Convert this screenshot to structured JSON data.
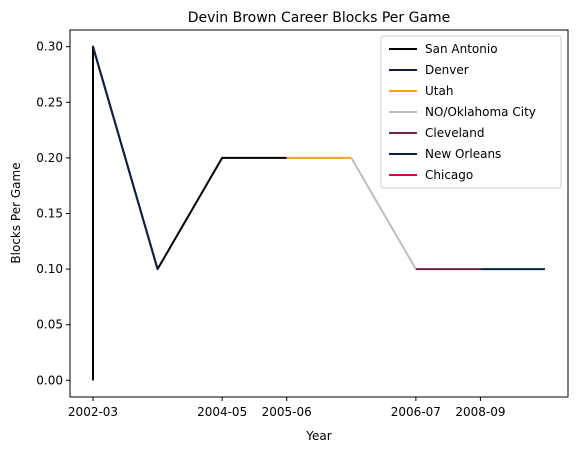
{
  "chart_data": {
    "type": "line",
    "title": "Devin Brown Career Blocks Per Game",
    "xlabel": "Year",
    "ylabel": "Blocks Per Game",
    "x_tick_labels": [
      "2002-03",
      "2004-05",
      "2005-06",
      "2006-07",
      "2008-09"
    ],
    "y_ticks": [
      "0.00",
      "0.05",
      "0.10",
      "0.15",
      "0.20",
      "0.25",
      "0.30"
    ],
    "ylim": [
      -0.015,
      0.315
    ],
    "grid": false,
    "legend_position": "top-right",
    "series": [
      {
        "name": "San Antonio",
        "color": "#000000",
        "points": [
          [
            0,
            0.0
          ],
          [
            0,
            0.3
          ],
          [
            0,
            0.3
          ],
          [
            1,
            0.1
          ],
          [
            2,
            0.2
          ],
          [
            3,
            0.2
          ]
        ]
      },
      {
        "name": "Denver",
        "color": "#0e2240",
        "points": [
          [
            0,
            0.3
          ],
          [
            1,
            0.1
          ]
        ]
      },
      {
        "name": "Utah",
        "color": "#f9a01b",
        "points": [
          [
            3,
            0.2
          ],
          [
            4,
            0.2
          ]
        ]
      },
      {
        "name": "NO/Oklahoma City",
        "color": "#bebebe",
        "points": [
          [
            4,
            0.2
          ],
          [
            5,
            0.1
          ]
        ]
      },
      {
        "name": "Cleveland",
        "color": "#6f263d",
        "points": [
          [
            5,
            0.1
          ],
          [
            6,
            0.1
          ]
        ]
      },
      {
        "name": "New Orleans",
        "color": "#0c2340",
        "points": [
          [
            6,
            0.1
          ],
          [
            7,
            0.1
          ]
        ]
      },
      {
        "name": "Chicago",
        "color": "#ce1141",
        "points": []
      }
    ]
  }
}
